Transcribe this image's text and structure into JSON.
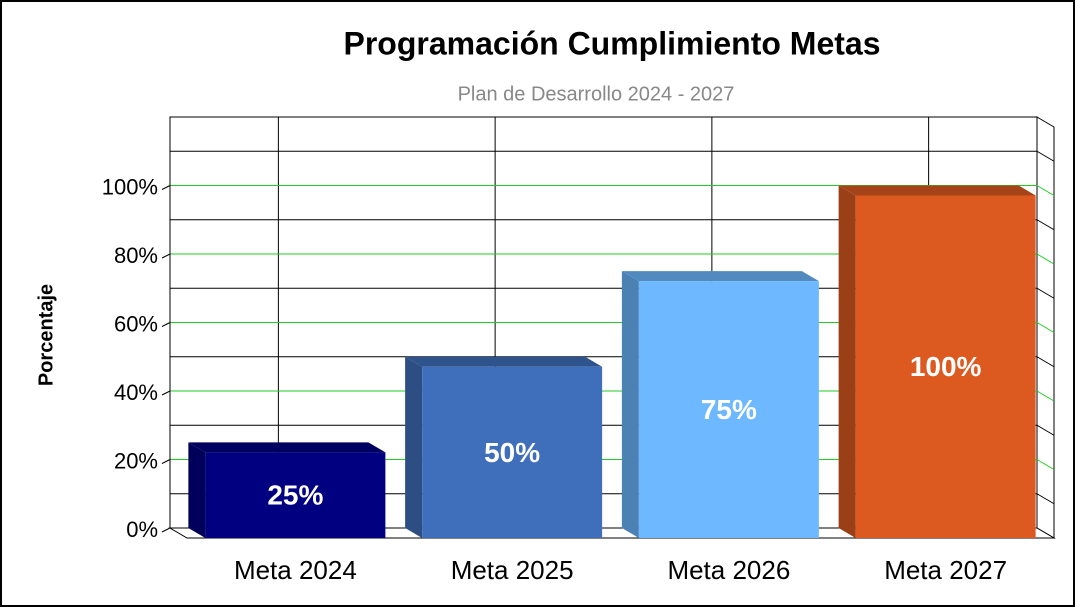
{
  "chart_data": {
    "type": "bar3d",
    "title": "Programación Cumplimiento Metas",
    "subtitle": "Plan de Desarrollo 2024 - 2027",
    "y_label": "Porcentaje",
    "categories": [
      "Meta 2024",
      "Meta 2025",
      "Meta 2026",
      "Meta 2027"
    ],
    "values": [
      25,
      50,
      75,
      100
    ],
    "value_labels": [
      "25%",
      "50%",
      "75%",
      "100%"
    ],
    "colors": [
      "#000080",
      "#3f6fba",
      "#6db8ff",
      "#dc5a20"
    ],
    "ylim": [
      0,
      120
    ],
    "yticks": [
      {
        "value": 0,
        "label": "0%"
      },
      {
        "value": 20,
        "label": "20%"
      },
      {
        "value": 40,
        "label": "40%"
      },
      {
        "value": 60,
        "label": "60%"
      },
      {
        "value": 80,
        "label": "80%"
      },
      {
        "value": 100,
        "label": "100%"
      }
    ],
    "grid": true,
    "grid_color": "#22cc22"
  }
}
